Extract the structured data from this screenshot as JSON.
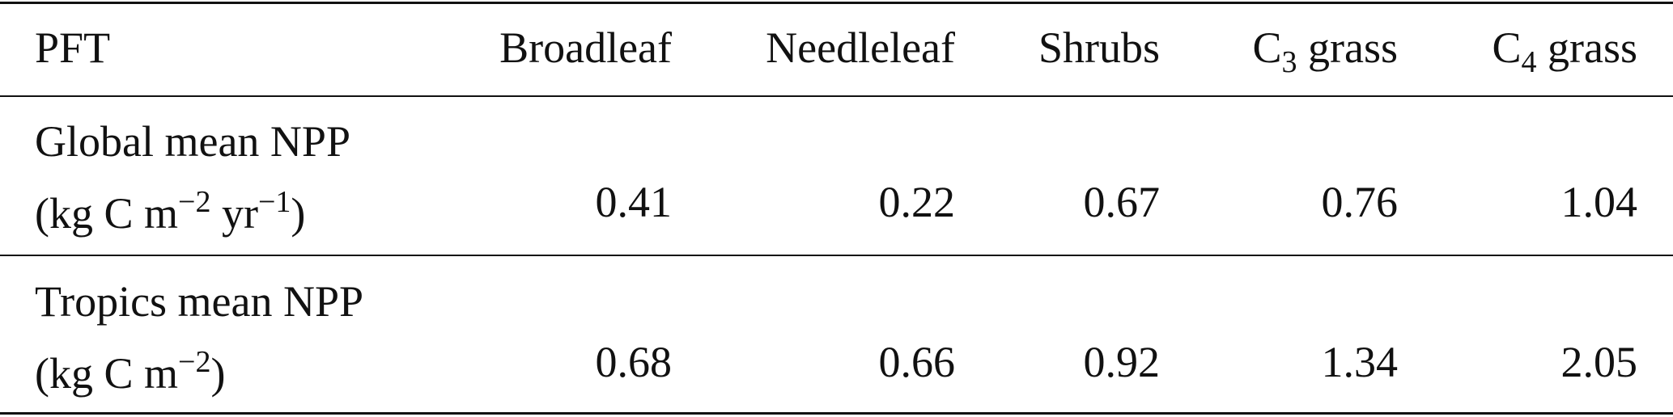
{
  "table": {
    "header": [
      [
        {
          "text": "PFT"
        }
      ],
      [
        {
          "text": "Broadleaf"
        }
      ],
      [
        {
          "text": "Needleleaf"
        }
      ],
      [
        {
          "text": "Shrubs"
        }
      ],
      [
        {
          "text": "C"
        },
        {
          "text": "3",
          "script": "sub"
        },
        {
          "text": " grass"
        }
      ],
      [
        {
          "text": "C"
        },
        {
          "text": "4",
          "script": "sub"
        },
        {
          "text": " grass"
        }
      ]
    ],
    "rows": [
      {
        "label": "Global mean NPP",
        "unit": [
          {
            "text": "(kg C m"
          },
          {
            "text": "−2",
            "script": "sup"
          },
          {
            "text": " yr"
          },
          {
            "text": "−1",
            "script": "sup"
          },
          {
            "text": ")"
          }
        ],
        "values": [
          0.41,
          0.22,
          0.67,
          0.76,
          1.04
        ]
      },
      {
        "label": "Tropics mean NPP",
        "unit": [
          {
            "text": "(kg C m"
          },
          {
            "text": "−2",
            "script": "sup"
          },
          {
            "text": ")"
          }
        ],
        "values": [
          0.68,
          0.66,
          0.92,
          1.34,
          2.05
        ]
      }
    ]
  }
}
